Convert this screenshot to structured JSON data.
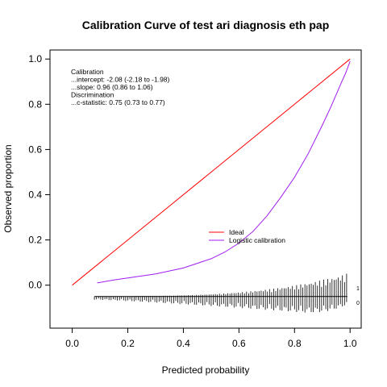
{
  "chart_data": {
    "type": "line",
    "title": "Calibration Curve of test ari diagnosis eth pap",
    "xlabel": "Predicted probability",
    "ylabel": "Observed proportion",
    "xlim": [
      -0.08,
      1.04
    ],
    "ylim": [
      -0.19,
      1.04
    ],
    "x_ticks": [
      0.0,
      0.2,
      0.4,
      0.6,
      0.8,
      1.0
    ],
    "y_ticks": [
      0.0,
      0.2,
      0.4,
      0.6,
      0.8,
      1.0
    ],
    "x_tick_labels": [
      "0.0",
      "0.2",
      "0.4",
      "0.6",
      "0.8",
      "1.0"
    ],
    "y_tick_labels": [
      "0.0",
      "0.2",
      "0.4",
      "0.6",
      "0.8",
      "1.0"
    ],
    "series": [
      {
        "name": "Ideal",
        "color": "#ff0000",
        "x": [
          0.0,
          1.0
        ],
        "y": [
          0.0,
          1.0
        ]
      },
      {
        "name": "Logistic calibration",
        "color": "#9f1cf0",
        "x": [
          0.09,
          0.15,
          0.2,
          0.3,
          0.4,
          0.5,
          0.55,
          0.6,
          0.65,
          0.7,
          0.75,
          0.8,
          0.85,
          0.9,
          0.93,
          0.95,
          0.97,
          0.985,
          1.0
        ],
        "y": [
          0.01,
          0.023,
          0.032,
          0.05,
          0.076,
          0.117,
          0.147,
          0.186,
          0.237,
          0.305,
          0.388,
          0.477,
          0.583,
          0.707,
          0.786,
          0.843,
          0.9,
          0.94,
          0.99
        ]
      }
    ],
    "legend": {
      "placement": "center-right",
      "entries": [
        "Ideal",
        "Logistic calibration"
      ]
    },
    "annotations": [
      "Calibration",
      "...intercept: -2.08 (-2.18 to -1.98)",
      "...slope: 0.96 (0.86 to 1.06)",
      "Discrimination",
      "...c-statistic: 0.75 (0.73 to 0.77)"
    ],
    "rug": {
      "baseline_y": -0.05,
      "label_events": "1",
      "label_nonevents": "0",
      "x_start": 0.08,
      "x_end": 0.99,
      "x_step": 0.0075
    }
  }
}
